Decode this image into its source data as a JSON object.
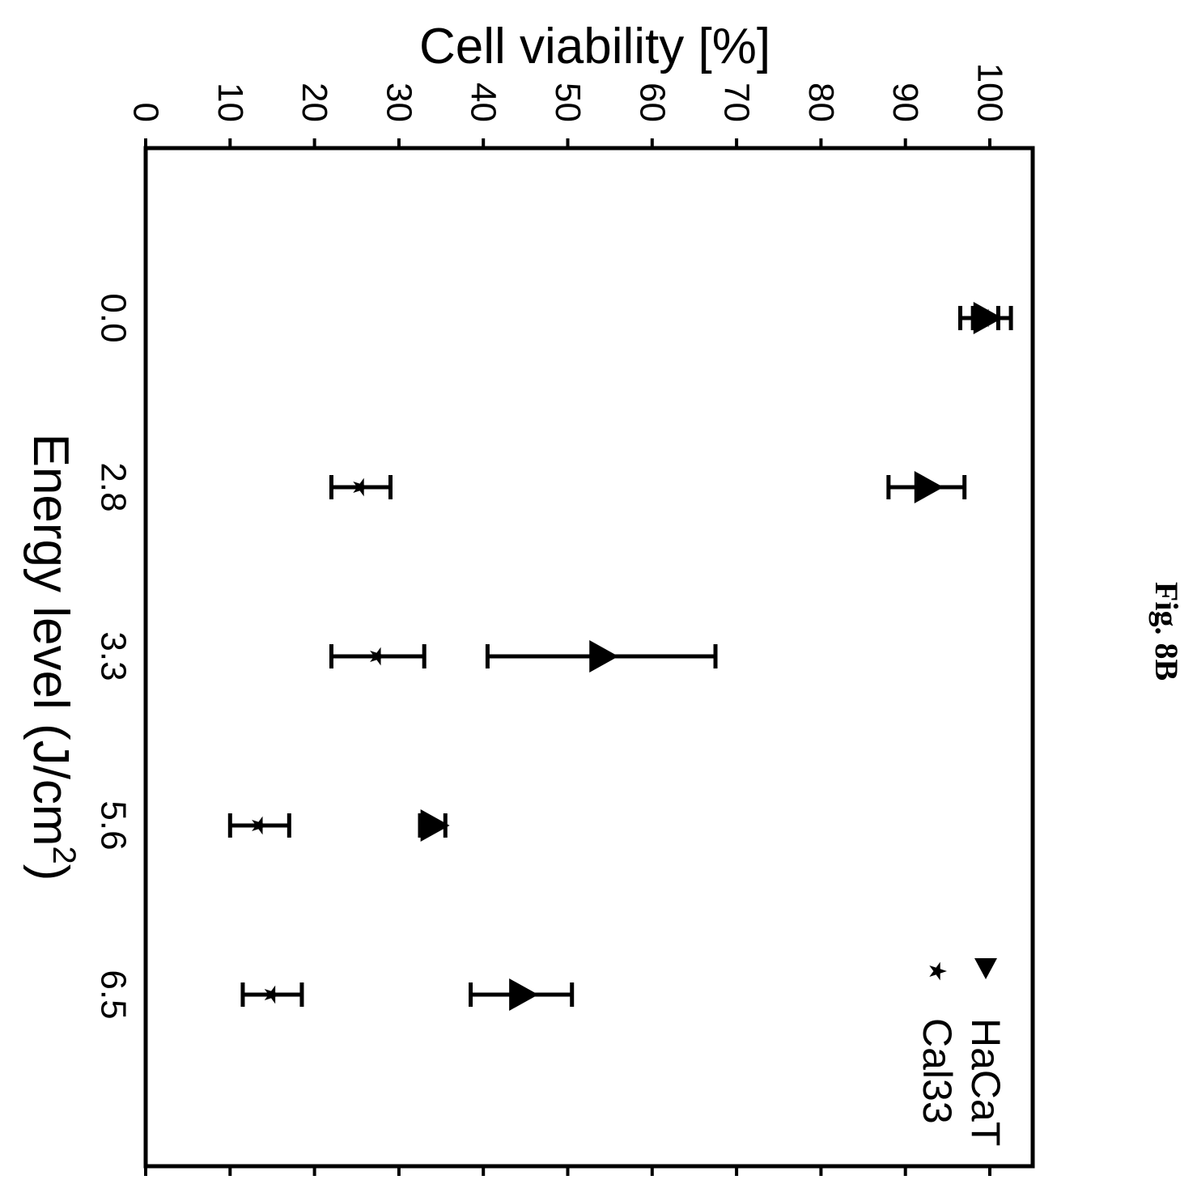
{
  "figure_label": "Fig. 8B",
  "chart_data": {
    "type": "scatter",
    "orientation": "rotated-90-clockwise",
    "xlabel": "Energy level (J/cm",
    "xlabel_superscript": "2",
    "xlabel_suffix": ")",
    "ylabel": "Cell viability [%]",
    "categories": [
      "0.0",
      "2.8",
      "3.3",
      "5.6",
      "6.5"
    ],
    "ylim": [
      0,
      105
    ],
    "yticks": [
      0,
      10,
      20,
      30,
      40,
      50,
      60,
      70,
      80,
      90,
      100
    ],
    "ytick_labels": [
      "0",
      "10",
      "20",
      "30",
      "40",
      "50",
      "60",
      "70",
      "80",
      "90",
      "100"
    ],
    "legend_position": "top-right",
    "series": [
      {
        "name": "HaCaT",
        "marker": "triangle",
        "values": [
          99.5,
          92.5,
          54,
          34,
          44.5
        ],
        "errors": [
          1.5,
          4.5,
          13.5,
          1.5,
          6
        ]
      },
      {
        "name": "Cal33",
        "marker": "star",
        "values": [
          99.5,
          25.5,
          27.5,
          13.5,
          15
        ],
        "errors": [
          3,
          3.5,
          5.5,
          3.5,
          3.5
        ]
      }
    ]
  }
}
